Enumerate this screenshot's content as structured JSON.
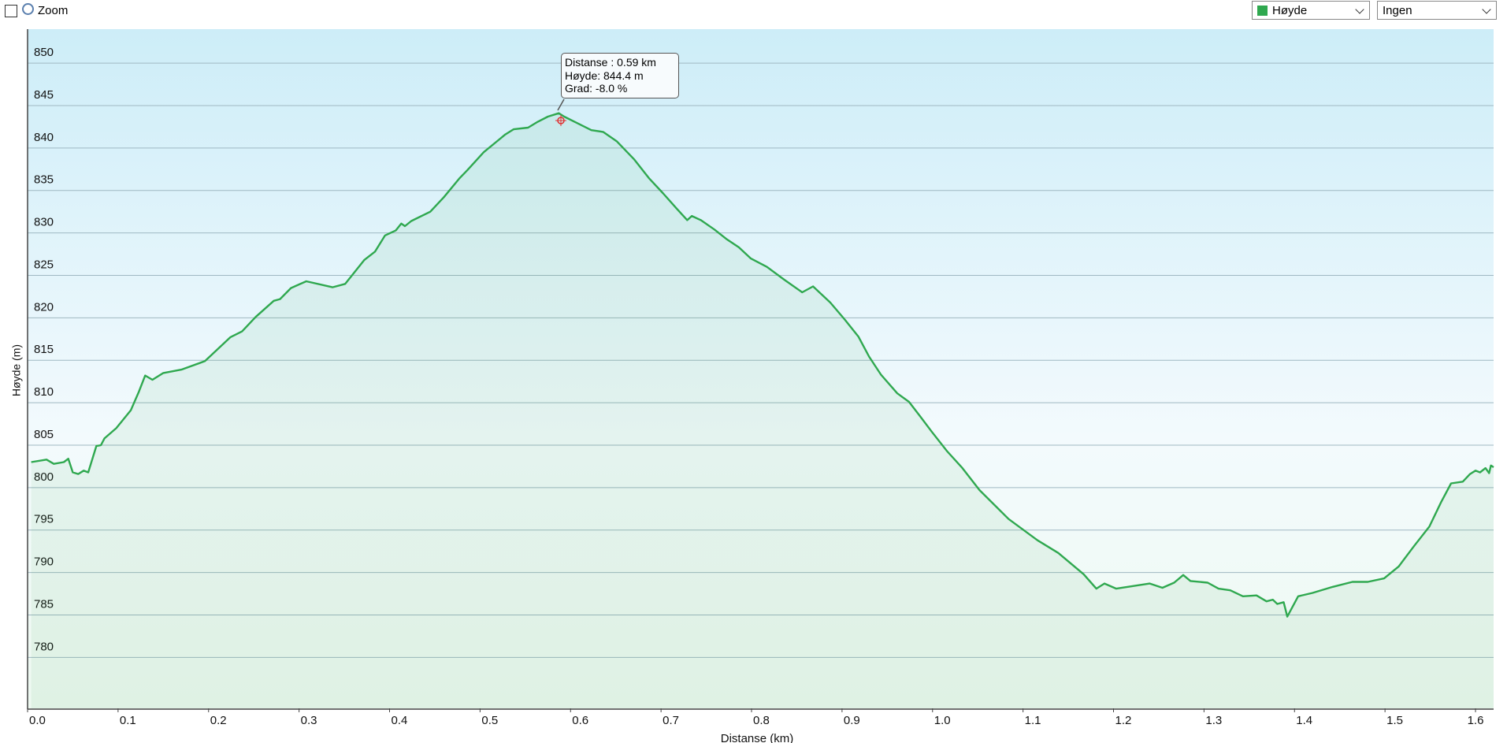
{
  "ui": {
    "zoom_label": "Zoom",
    "dropdown_2": "Ingen"
  },
  "chart_data": {
    "type": "area",
    "ylabel": "Høyde (m)",
    "xlabel": "Distanse  (km)",
    "annotation": [
      "Distanse : 0.59 km",
      "Høyde: 844.4 m",
      "Grad: -8.0 %"
    ],
    "xlim": [
      0,
      1.62
    ],
    "ylim": [
      774,
      854
    ],
    "xticks": [
      {
        "value": 0,
        "label": "0.0"
      },
      0.1,
      0.2,
      0.3,
      0.4,
      0.5,
      0.6,
      0.7,
      0.8,
      0.9,
      {
        "value": 1,
        "label": "1.0"
      },
      1.1,
      1.2,
      1.3,
      1.4,
      1.5,
      1.6
    ],
    "yticks": [
      780,
      785,
      790,
      795,
      800,
      805,
      810,
      815,
      820,
      825,
      830,
      835,
      840,
      845,
      850
    ],
    "grid": true,
    "x": [
      0.004,
      0.021,
      0.029,
      0.04,
      0.045,
      0.05,
      0.056,
      0.062,
      0.067,
      0.076,
      0.081,
      0.085,
      0.098,
      0.114,
      0.123,
      0.13,
      0.138,
      0.15,
      0.17,
      0.196,
      0.224,
      0.237,
      0.252,
      0.272,
      0.279,
      0.291,
      0.308,
      0.337,
      0.351,
      0.372,
      0.384,
      0.395,
      0.407,
      0.413,
      0.417,
      0.424,
      0.445,
      0.46,
      0.477,
      0.486,
      0.504,
      0.528,
      0.537,
      0.553,
      0.564,
      0.575,
      0.587,
      0.593,
      0.608,
      0.623,
      0.636,
      0.651,
      0.67,
      0.687,
      0.702,
      0.717,
      0.729,
      0.734,
      0.744,
      0.759,
      0.772,
      0.786,
      0.799,
      0.817,
      0.836,
      0.856,
      0.868,
      0.887,
      0.903,
      0.918,
      0.93,
      0.943,
      0.961,
      0.974,
      0.987,
      0.999,
      1.016,
      1.033,
      1.052,
      1.084,
      1.116,
      1.139,
      1.167,
      1.181,
      1.19,
      1.203,
      1.24,
      1.254,
      1.267,
      1.277,
      1.285,
      1.304,
      1.316,
      1.329,
      1.343,
      1.358,
      1.369,
      1.376,
      1.381,
      1.388,
      1.392,
      1.404,
      1.42,
      1.442,
      1.464,
      1.481,
      1.499,
      1.515,
      1.532,
      1.549,
      1.562,
      1.573,
      1.586,
      1.594,
      1.6,
      1.605,
      1.611,
      1.615,
      1.617,
      1.62
    ],
    "series": [
      {
        "name": "Høyde",
        "color": "#2fa84f",
        "values": [
          803.0,
          803.3,
          802.8,
          803.0,
          803.4,
          801.8,
          801.6,
          802.0,
          801.8,
          804.9,
          805.0,
          805.8,
          807.0,
          809.1,
          811.3,
          813.2,
          812.7,
          813.5,
          813.9,
          814.9,
          817.7,
          818.4,
          820.1,
          822.0,
          822.2,
          823.5,
          824.3,
          823.6,
          824.0,
          826.8,
          827.8,
          829.7,
          830.3,
          831.1,
          830.8,
          831.4,
          832.5,
          834.2,
          836.4,
          837.4,
          839.5,
          841.6,
          842.2,
          842.4,
          843.1,
          843.7,
          844.1,
          843.7,
          842.9,
          842.1,
          841.9,
          840.8,
          838.7,
          836.4,
          834.7,
          832.9,
          831.5,
          832.0,
          831.5,
          830.4,
          829.3,
          828.3,
          827.0,
          826.0,
          824.5,
          823.0,
          823.7,
          821.8,
          819.8,
          817.8,
          815.4,
          813.3,
          811.1,
          810.1,
          808.3,
          806.6,
          804.3,
          802.3,
          799.7,
          796.3,
          793.8,
          792.3,
          789.8,
          788.1,
          788.7,
          788.1,
          788.7,
          788.2,
          788.8,
          789.7,
          789.0,
          788.8,
          788.1,
          787.9,
          787.2,
          787.3,
          786.6,
          786.8,
          786.3,
          786.5,
          784.8,
          787.2,
          787.6,
          788.3,
          788.9,
          788.9,
          789.3,
          790.7,
          793.1,
          795.4,
          798.3,
          800.5,
          800.7,
          801.6,
          802.0,
          801.8,
          802.3,
          801.7,
          802.6,
          802.4
        ]
      }
    ]
  }
}
